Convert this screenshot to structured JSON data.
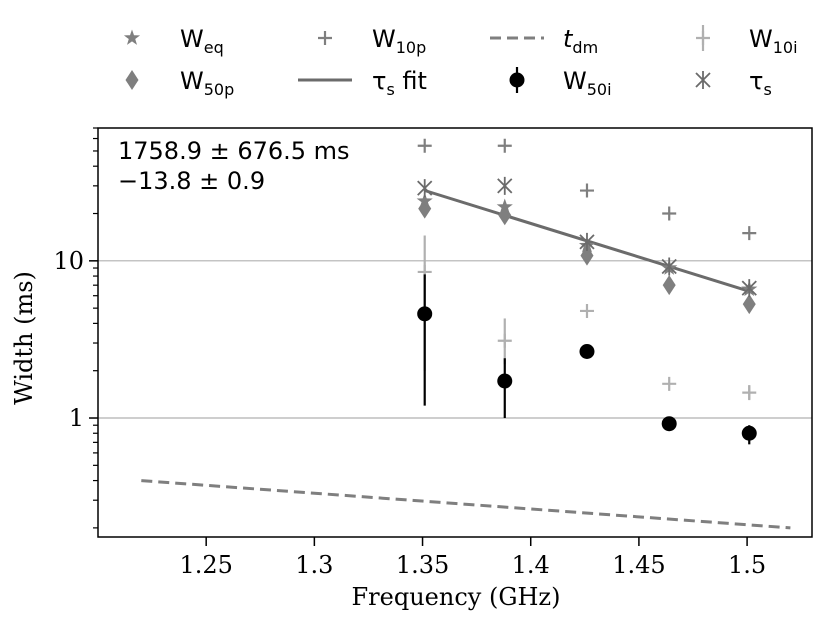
{
  "chart_data": {
    "type": "scatter",
    "xlabel": "Frequency (GHz)",
    "ylabel": "Width (ms)",
    "xlim": [
      1.2,
      1.53
    ],
    "ylim": [
      0.175,
      70
    ],
    "yscale": "log",
    "grid": "horizontal at major y ticks",
    "x_ticks": [
      1.25,
      1.3,
      1.35,
      1.4,
      1.45,
      1.5
    ],
    "x_tick_labels": [
      "1.25",
      "1.3",
      "1.35",
      "1.4",
      "1.45",
      "1.5"
    ],
    "y_ticks": [
      1,
      10
    ],
    "y_tick_labels": [
      "1",
      "10"
    ],
    "legend_position": "above plot",
    "annotations": [
      "1758.9 ± 676.5 ms",
      "−13.8 ± 0.9"
    ],
    "series": [
      {
        "key": "weq",
        "name": "W",
        "sub": "eq",
        "italic": false,
        "marker": "star",
        "color": "#7f7f7f",
        "x": [
          1.351,
          1.388,
          1.426,
          1.464,
          1.501
        ],
        "y": [
          24,
          22,
          12.5,
          9.0,
          6.6
        ]
      },
      {
        "key": "w10p",
        "name": "W",
        "sub": "10p",
        "italic": false,
        "marker": "plus",
        "color": "#7f7f7f",
        "x": [
          1.351,
          1.388,
          1.426,
          1.464,
          1.501
        ],
        "y": [
          54,
          54,
          28,
          20,
          15
        ]
      },
      {
        "key": "tdm",
        "name": "t",
        "sub": "dm",
        "italic": true,
        "marker": "dashed-line",
        "color": "#7f7f7f",
        "x": [
          1.22,
          1.52
        ],
        "y": [
          0.4,
          0.2
        ]
      },
      {
        "key": "w10i",
        "name": "W",
        "sub": "10i",
        "italic": false,
        "marker": "plus-errorbar",
        "color": "#b0b0b0",
        "x": [
          1.351,
          1.388,
          1.426,
          1.464,
          1.501
        ],
        "y": [
          8.5,
          3.1,
          4.8,
          1.65,
          1.45
        ],
        "y_err_low": [
          2.0,
          2.2,
          4.8,
          1.65,
          1.3
        ],
        "y_err_high": [
          14.5,
          4.3,
          4.8,
          1.65,
          1.62
        ]
      },
      {
        "key": "w50p",
        "name": "W",
        "sub": "50p",
        "italic": false,
        "marker": "diamond",
        "color": "#7f7f7f",
        "x": [
          1.351,
          1.388,
          1.426,
          1.464,
          1.501
        ],
        "y": [
          21.5,
          19.5,
          10.8,
          7.0,
          5.3
        ]
      },
      {
        "key": "taufit",
        "name": "τ",
        "sub": "s",
        "suffix": " fit",
        "italic": false,
        "marker": "solid-line",
        "color": "#6b6b6b",
        "x": [
          1.351,
          1.501
        ],
        "y": [
          28,
          6.4
        ]
      },
      {
        "key": "w50i",
        "name": "W",
        "sub": "50i",
        "italic": false,
        "marker": "circle-errorbar",
        "color": "#000000",
        "x": [
          1.351,
          1.388,
          1.426,
          1.464,
          1.501
        ],
        "y": [
          4.6,
          1.72,
          2.65,
          0.92,
          0.8
        ],
        "y_err_low": [
          1.2,
          1.0,
          2.65,
          0.92,
          0.68
        ],
        "y_err_high": [
          8.2,
          2.4,
          2.65,
          0.92,
          0.9
        ]
      },
      {
        "key": "taus",
        "name": "τ",
        "sub": "s",
        "italic": false,
        "marker": "asterisk",
        "color": "#6b6b6b",
        "x": [
          1.351,
          1.388,
          1.426,
          1.464,
          1.501
        ],
        "y": [
          29,
          30,
          13.2,
          9.2,
          6.7
        ]
      }
    ]
  }
}
